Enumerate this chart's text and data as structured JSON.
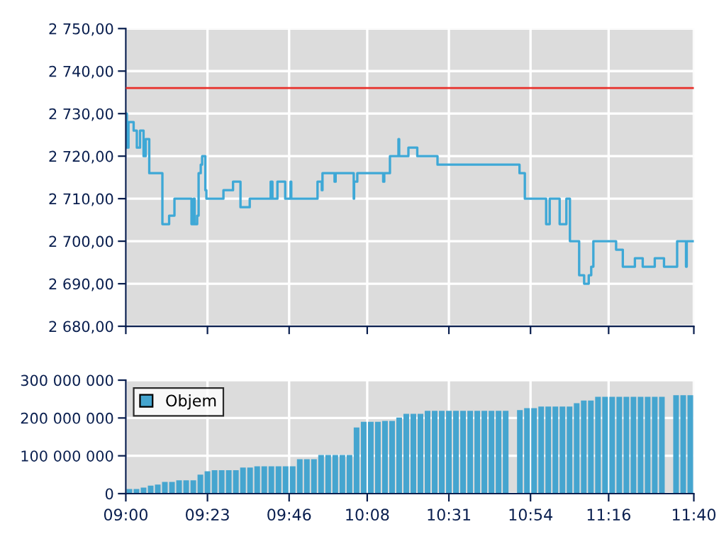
{
  "chart_data": [
    {
      "type": "step",
      "tick_labels": "y",
      "grid": true,
      "legend": false,
      "xlim": [
        9.0,
        11.6667
      ],
      "xticks": [
        {
          "value": 9.0,
          "label": null
        },
        {
          "value": 9.3833,
          "label": null
        },
        {
          "value": 9.7667,
          "label": null
        },
        {
          "value": 10.1333,
          "label": null
        },
        {
          "value": 10.5167,
          "label": null
        },
        {
          "value": 10.9,
          "label": null
        },
        {
          "value": 11.2667,
          "label": null
        },
        {
          "value": 11.6667,
          "label": null
        }
      ],
      "ylim": [
        2680,
        2750
      ],
      "yticks": [
        {
          "value": 2680,
          "label": "2 680,00"
        },
        {
          "value": 2690,
          "label": "2 690,00"
        },
        {
          "value": 2700,
          "label": "2 700,00"
        },
        {
          "value": 2710,
          "label": "2 710,00"
        },
        {
          "value": 2720,
          "label": "2 720,00"
        },
        {
          "value": 2730,
          "label": "2 730,00"
        },
        {
          "value": 2740,
          "label": "2 740,00"
        },
        {
          "value": 2750,
          "label": "2 750,00"
        }
      ],
      "ref_lines": [
        {
          "axis": "y",
          "value": 2736,
          "color": "#e8302a"
        }
      ],
      "series": [
        {
          "color": "#3ea8d6",
          "x": [
            9.0,
            9.005,
            9.0125,
            9.0367,
            9.0517,
            9.0667,
            9.0833,
            9.0933,
            9.11,
            9.1717,
            9.2033,
            9.2283,
            9.3083,
            9.3183,
            9.3233,
            9.335,
            9.3417,
            9.3517,
            9.3583,
            9.3733,
            9.3783,
            9.4583,
            9.5033,
            9.5383,
            9.5817,
            9.68,
            9.6883,
            9.7117,
            9.7483,
            9.7733,
            9.7767,
            9.9,
            9.92,
            9.9233,
            9.98,
            9.985,
            10.07,
            10.0717,
            10.0867,
            10.2083,
            10.2133,
            10.24,
            10.28,
            10.2833,
            10.3267,
            10.3683,
            10.4633,
            10.8483,
            10.8733,
            10.9733,
            10.99,
            11.0367,
            11.0683,
            11.085,
            11.1283,
            11.1517,
            11.1733,
            11.185,
            11.195,
            11.3017,
            11.3333,
            11.39,
            11.4267,
            11.4833,
            11.5267,
            11.5883,
            11.63,
            11.6333,
            11.6667
          ],
          "values": [
            2730,
            2722,
            2728,
            2726,
            2722,
            2726,
            2720,
            2724,
            2716,
            2704,
            2706,
            2710,
            2704,
            2710,
            2704,
            2706,
            2716,
            2718,
            2720,
            2712,
            2710,
            2712,
            2714,
            2708,
            2710,
            2714,
            2710,
            2714,
            2710,
            2714,
            2710,
            2714,
            2712,
            2716,
            2714,
            2716,
            2710,
            2714,
            2716,
            2714,
            2716,
            2720,
            2724,
            2720,
            2722,
            2720,
            2718,
            2716,
            2710,
            2704,
            2710,
            2704,
            2710,
            2700,
            2692,
            2690,
            2692,
            2694,
            2700,
            2698,
            2694,
            2696,
            2694,
            2696,
            2694,
            2700,
            2694,
            2700,
            2700
          ]
        }
      ]
    },
    {
      "type": "bar",
      "grid": true,
      "legend": "top left",
      "xlim": [
        9.0,
        11.6667
      ],
      "xticks": [
        {
          "value": 9.0,
          "label": "09:00"
        },
        {
          "value": 9.3833,
          "label": "09:23"
        },
        {
          "value": 9.7667,
          "label": "09:46"
        },
        {
          "value": 10.1333,
          "label": "10:08"
        },
        {
          "value": 10.5167,
          "label": "10:31"
        },
        {
          "value": 10.9,
          "label": "10:54"
        },
        {
          "value": 11.2667,
          "label": "11:16"
        },
        {
          "value": 11.6667,
          "label": "11:40"
        }
      ],
      "ylim": [
        0,
        300000000
      ],
      "yticks": [
        {
          "value": 0,
          "label": "0"
        },
        {
          "value": 100000000,
          "label": "100 000 000"
        },
        {
          "value": 200000000,
          "label": "200 000 000"
        },
        {
          "value": 300000000,
          "label": "300 000 000"
        }
      ],
      "series": [
        {
          "name": "Objem",
          "color": "#45a5cf",
          "x": [
            9.0167,
            9.05,
            9.0833,
            9.1167,
            9.15,
            9.1833,
            9.2167,
            9.25,
            9.2833,
            9.3167,
            9.35,
            9.3833,
            9.4167,
            9.45,
            9.4833,
            9.5167,
            9.55,
            9.5833,
            9.6167,
            9.65,
            9.6833,
            9.7167,
            9.75,
            9.7833,
            9.8167,
            9.85,
            9.8833,
            9.9167,
            9.95,
            9.9833,
            10.0167,
            10.05,
            10.0833,
            10.1167,
            10.15,
            10.1833,
            10.2167,
            10.25,
            10.2833,
            10.3167,
            10.35,
            10.3833,
            10.4167,
            10.45,
            10.4833,
            10.5167,
            10.55,
            10.5833,
            10.6167,
            10.65,
            10.6833,
            10.7167,
            10.75,
            10.7833,
            10.8167,
            10.85,
            10.8833,
            10.9167,
            10.95,
            10.9833,
            11.0167,
            11.05,
            11.0833,
            11.1167,
            11.15,
            11.1833,
            11.2167,
            11.25,
            11.2833,
            11.3167,
            11.35,
            11.3833,
            11.4167,
            11.45,
            11.4833,
            11.5167,
            11.55,
            11.5833,
            11.6167,
            11.65
          ],
          "values": [
            12000000,
            12000000,
            16000000,
            21000000,
            24000000,
            31000000,
            31000000,
            35000000,
            35000000,
            35000000,
            50000000,
            59000000,
            62000000,
            62000000,
            62000000,
            62000000,
            69000000,
            69000000,
            72000000,
            72000000,
            72000000,
            72000000,
            72000000,
            72000000,
            91000000,
            91000000,
            91000000,
            102000000,
            102000000,
            102000000,
            102000000,
            102000000,
            175000000,
            190000000,
            190000000,
            190000000,
            192000000,
            192000000,
            201000000,
            211000000,
            211000000,
            211000000,
            219000000,
            219000000,
            219000000,
            219000000,
            219000000,
            219000000,
            219000000,
            219000000,
            219000000,
            219000000,
            219000000,
            219000000,
            null,
            221000000,
            226000000,
            226000000,
            230000000,
            230000000,
            230000000,
            230000000,
            230000000,
            239000000,
            246000000,
            246000000,
            256000000,
            256000000,
            256000000,
            256000000,
            256000000,
            256000000,
            256000000,
            256000000,
            256000000,
            256000000,
            null,
            260000000,
            260000000,
            260000000
          ]
        }
      ]
    }
  ]
}
